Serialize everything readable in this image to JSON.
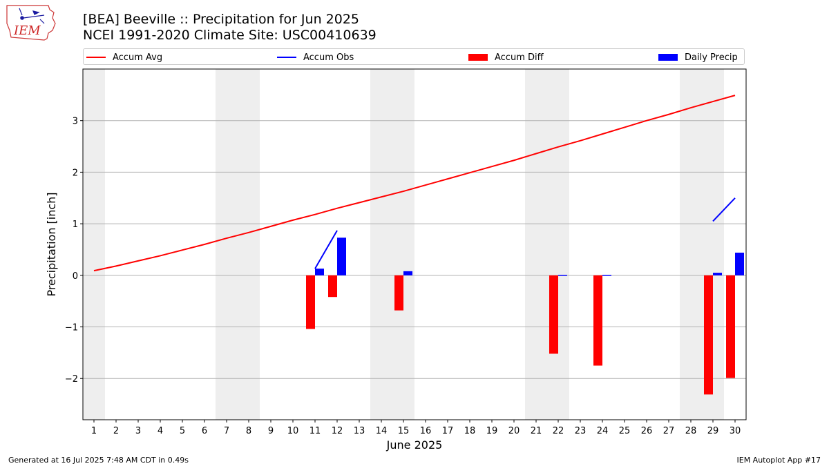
{
  "header": {
    "title_line1": "[BEA] Beeville :: Precipitation for Jun 2025",
    "title_line2": "NCEI 1991-2020 Climate Site: USC00410639"
  },
  "logo": {
    "text": "IEM",
    "icon": "iowa-state-outline-logo"
  },
  "footer": {
    "generated": "Generated at 16 Jul 2025 7:48 AM CDT in 0.49s",
    "app": "IEM Autoplot App #17"
  },
  "legend": {
    "items": [
      {
        "label": "Accum Avg",
        "kind": "line",
        "color": "#ff0000"
      },
      {
        "label": "Accum Obs",
        "kind": "line",
        "color": "#0000ff"
      },
      {
        "label": "Accum Diff",
        "kind": "box",
        "color": "#ff0000"
      },
      {
        "label": "Daily Precip",
        "kind": "box",
        "color": "#0000ff"
      }
    ]
  },
  "chart_data": {
    "type": "bar",
    "xlabel": "June 2025",
    "ylabel": "Precipitation [inch]",
    "x": [
      1,
      2,
      3,
      4,
      5,
      6,
      7,
      8,
      9,
      10,
      11,
      12,
      13,
      14,
      15,
      16,
      17,
      18,
      19,
      20,
      21,
      22,
      23,
      24,
      25,
      26,
      27,
      28,
      29,
      30
    ],
    "xlim": [
      0.5,
      30.5
    ],
    "ylim": [
      -2.8,
      4.0
    ],
    "yticks": [
      -2,
      -1,
      0,
      1,
      2,
      3
    ],
    "ytick_labels": [
      "−2",
      "−1",
      "0",
      "1",
      "2",
      "3"
    ],
    "grid": "horizontal",
    "legend_position": "top",
    "weekend_shading": [
      [
        0.5,
        1.5
      ],
      [
        6.5,
        8.5
      ],
      [
        13.5,
        15.5
      ],
      [
        20.5,
        22.5
      ],
      [
        27.5,
        29.5
      ]
    ],
    "colors": {
      "avg": "#ff0000",
      "obs": "#0000ff",
      "diff": "#ff0000",
      "daily": "#0000ff",
      "shade": "#eeeeee",
      "grid": "#b0b0b0"
    },
    "series": [
      {
        "name": "Accum Avg",
        "kind": "line",
        "values": [
          0.09,
          0.18,
          0.28,
          0.38,
          0.49,
          0.6,
          0.72,
          0.83,
          0.95,
          1.07,
          1.18,
          1.3,
          1.41,
          1.52,
          1.63,
          1.75,
          1.87,
          1.99,
          2.11,
          2.23,
          2.36,
          2.49,
          2.61,
          2.74,
          2.87,
          3.0,
          3.12,
          3.25,
          3.37,
          3.49
        ]
      },
      {
        "name": "Accum Obs",
        "kind": "line",
        "segments": [
          {
            "x": [
              11,
              12
            ],
            "values": [
              0.13,
              0.87
            ]
          },
          {
            "x": [
              29,
              30
            ],
            "values": [
              1.05,
              1.5
            ]
          }
        ]
      },
      {
        "name": "Accum Diff",
        "kind": "bar",
        "x": [
          11,
          12,
          15,
          22,
          24,
          29,
          30
        ],
        "values": [
          -1.04,
          -0.42,
          -0.68,
          -1.52,
          -1.75,
          -2.31,
          -1.99
        ]
      },
      {
        "name": "Daily Precip",
        "kind": "bar",
        "x": [
          11,
          12,
          15,
          22,
          24,
          29,
          30
        ],
        "values": [
          0.13,
          0.73,
          0.08,
          0.01,
          0.01,
          0.05,
          0.44
        ]
      }
    ]
  }
}
